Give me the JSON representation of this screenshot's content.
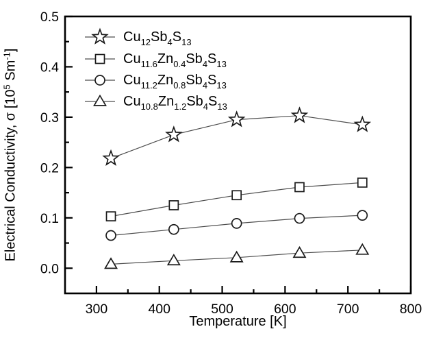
{
  "figure": {
    "background": "#ffffff",
    "axis_color": "#000000",
    "text_color": "#000000",
    "series_line_color": "#4d4d4d",
    "marker_stroke_color": "#1a1a1a",
    "marker_fill": "#ffffff"
  },
  "chart_data": {
    "type": "line",
    "xlabel": "Temperature [K]",
    "ylabel_text": "Electrical Conductivity, σ [10⁵ Sm⁻¹]",
    "ylabel_parts": [
      {
        "t": "Electrical Conductivity, σ [10"
      },
      {
        "sup": "5"
      },
      {
        "t": " Sm"
      },
      {
        "sup": "-1"
      },
      {
        "t": "]"
      }
    ],
    "xlim": [
      250,
      800
    ],
    "ylim": [
      -0.05,
      0.5
    ],
    "x_major_ticks": [
      {
        "v": 300,
        "label": "300"
      },
      {
        "v": 400,
        "label": "400"
      },
      {
        "v": 500,
        "label": "500"
      },
      {
        "v": 600,
        "label": "600"
      },
      {
        "v": 700,
        "label": "700"
      },
      {
        "v": 800,
        "label": "800"
      }
    ],
    "x_minor_ticks": [
      350,
      450,
      550,
      650,
      750
    ],
    "y_major_ticks": [
      {
        "v": 0.0,
        "label": "0.0"
      },
      {
        "v": 0.1,
        "label": "0.1"
      },
      {
        "v": 0.2,
        "label": "0.2"
      },
      {
        "v": 0.3,
        "label": "0.3"
      },
      {
        "v": 0.4,
        "label": "0.4"
      },
      {
        "v": 0.5,
        "label": "0.5"
      }
    ],
    "y_minor_ticks": [
      0.05,
      0.15,
      0.25,
      0.35,
      0.45
    ],
    "grid": false,
    "legend_position": "upper-left-inside",
    "x": [
      323,
      423,
      523,
      623,
      723
    ],
    "series": [
      {
        "marker": "star",
        "name": "Cu12Sb4S13",
        "label_parts": [
          {
            "t": "Cu"
          },
          {
            "sub": "12"
          },
          {
            "t": "Sb"
          },
          {
            "sub": "4"
          },
          {
            "t": "S"
          },
          {
            "sub": "13"
          }
        ],
        "values": [
          0.218,
          0.265,
          0.295,
          0.303,
          0.285
        ]
      },
      {
        "marker": "square",
        "name": "Cu11.6Zn0.4Sb4S13",
        "label_parts": [
          {
            "t": "Cu"
          },
          {
            "sub": "11.6"
          },
          {
            "t": "Zn"
          },
          {
            "sub": "0.4"
          },
          {
            "t": "Sb"
          },
          {
            "sub": "4"
          },
          {
            "t": "S"
          },
          {
            "sub": "13"
          }
        ],
        "values": [
          0.103,
          0.125,
          0.145,
          0.161,
          0.17
        ]
      },
      {
        "marker": "circle",
        "name": "Cu11.2Zn0.8Sb4S13",
        "label_parts": [
          {
            "t": "Cu"
          },
          {
            "sub": "11.2"
          },
          {
            "t": "Zn"
          },
          {
            "sub": "0.8"
          },
          {
            "t": "Sb"
          },
          {
            "sub": "4"
          },
          {
            "t": "S"
          },
          {
            "sub": "13"
          }
        ],
        "values": [
          0.065,
          0.077,
          0.089,
          0.099,
          0.105
        ]
      },
      {
        "marker": "triangle",
        "name": "Cu10.8Zn1.2Sb4S13",
        "label_parts": [
          {
            "t": "Cu"
          },
          {
            "sub": "10.8"
          },
          {
            "t": "Zn"
          },
          {
            "sub": "1.2"
          },
          {
            "t": "Sb"
          },
          {
            "sub": "4"
          },
          {
            "t": "S"
          },
          {
            "sub": "13"
          }
        ],
        "values": [
          0.008,
          0.015,
          0.021,
          0.03,
          0.036
        ]
      }
    ]
  }
}
